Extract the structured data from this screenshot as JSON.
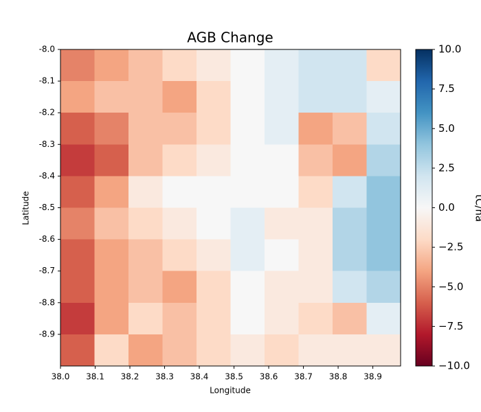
{
  "chart_data": {
    "type": "heatmap",
    "title": "AGB Change",
    "x_label": "Longitude",
    "y_label": "Latitude",
    "colorbar_label": "tC/ha",
    "colormap": "RdBu",
    "xlim": [
      38,
      38.98
    ],
    "ylim": [
      -8,
      -9
    ],
    "xticks": [
      {
        "value": 38,
        "label": "38.0"
      },
      38.1,
      38.2,
      38.3,
      38.4,
      38.5,
      38.6,
      38.7,
      38.8,
      38.9
    ],
    "yticks": [
      {
        "value": -8,
        "label": "-8.0"
      },
      -8.1,
      -8.2,
      -8.3,
      -8.4,
      -8.5,
      -8.6,
      -8.7,
      -8.8,
      -8.9
    ],
    "clim": [
      -10,
      10
    ],
    "cticks": [
      {
        "value": 10,
        "label": "10.0"
      },
      7.5,
      {
        "value": 5,
        "label": "5.0"
      },
      2.5,
      {
        "value": 0,
        "label": "0.0"
      },
      {
        "value": -2.5,
        "label": "−2.5"
      },
      {
        "value": -5,
        "label": "−5.0"
      },
      {
        "value": -7.5,
        "label": "−7.5"
      },
      {
        "value": -10,
        "label": "−10.0"
      }
    ],
    "z": [
      [
        -5,
        -4,
        -3,
        -2,
        -1,
        0,
        1,
        2,
        2,
        -2
      ],
      [
        -4,
        -3,
        -3,
        -4,
        -2,
        0,
        1,
        2,
        2,
        1
      ],
      [
        -6,
        -5,
        -3,
        -3,
        -2,
        0,
        1,
        -4,
        -3,
        2
      ],
      [
        -7,
        -6,
        -3,
        -2,
        -1,
        0,
        0,
        -3,
        -4,
        3
      ],
      [
        -6,
        -4,
        -1,
        0,
        0,
        0,
        0,
        -2,
        2,
        4
      ],
      [
        -5,
        -3,
        -2,
        -1,
        0,
        1,
        -1,
        -1,
        3,
        4
      ],
      [
        -6,
        -4,
        -3,
        -2,
        -1,
        1,
        0,
        -1,
        3,
        4
      ],
      [
        -6,
        -4,
        -3,
        -4,
        -2,
        0,
        -1,
        -1,
        2,
        3
      ],
      [
        -7,
        -4,
        -2,
        -3,
        -2,
        0,
        -1,
        -2,
        -3,
        1
      ],
      [
        -6,
        -2,
        -4,
        -3,
        -2,
        -1,
        -2,
        -1,
        -1,
        -1
      ]
    ]
  }
}
